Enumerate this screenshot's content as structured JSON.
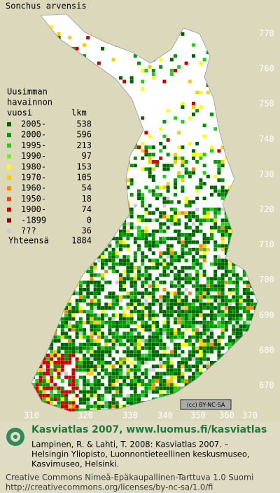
{
  "title": "Sonchus arvensis",
  "legend": {
    "heading": [
      "Uusimman",
      "havainnon"
    ],
    "col_year": "vuosi",
    "col_count": "lkm",
    "items": [
      {
        "label": "2005-",
        "count": 538,
        "color": "#006400"
      },
      {
        "label": "2000-",
        "count": 596,
        "color": "#009a00"
      },
      {
        "label": "1995-",
        "count": 213,
        "color": "#22cc22"
      },
      {
        "label": "1990-",
        "count": 97,
        "color": "#77ee22"
      },
      {
        "label": "1980-",
        "count": 153,
        "color": "#ffff00"
      },
      {
        "label": "1970-",
        "count": 105,
        "color": "#ffcc00"
      },
      {
        "label": "1960-",
        "count": 54,
        "color": "#ff8800"
      },
      {
        "label": "1950-",
        "count": 18,
        "color": "#ee4400"
      },
      {
        "label": "1900-",
        "count": 74,
        "color": "#cc0000"
      },
      {
        "label": "-1899",
        "count": 0,
        "color": "#880000"
      },
      {
        "label": "???",
        "count": 36,
        "color": "#cccccc"
      }
    ],
    "total_label": "Yhteensä",
    "total": 1884
  },
  "axes": {
    "y_labels": [
      770,
      760,
      750,
      740,
      730,
      720,
      710,
      700,
      690,
      680,
      670
    ],
    "x_labels": [
      310,
      320,
      330,
      340,
      350,
      360,
      370
    ]
  },
  "badge": "(cc) BY-NC-SA",
  "footer": {
    "site": "Kasviatlas 2007, www.luomus.fi/kasviatlas",
    "citation": [
      "Lampinen, R. & Lahti, T. 2008: Kasviatlas 2007. –",
      "Helsingin Yliopisto, Luonnontieteellinen keskusmuseo,",
      "Kasvimuseo, Helsinki."
    ],
    "license": [
      "Creative Commons Nimeä-Epäkaupallinen-Tarttuva 1.0 Suomi",
      "http://creativecommons.org/licenses/by-nc-sa/1.0/fi"
    ]
  }
}
